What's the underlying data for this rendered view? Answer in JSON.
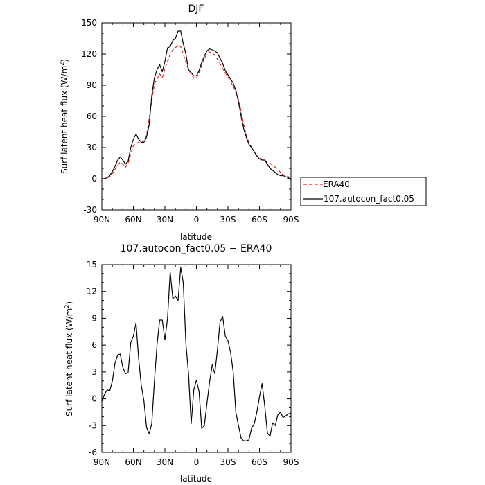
{
  "chart_data": [
    {
      "type": "line",
      "title": "DJF",
      "xlabel": "latitude",
      "ylabel_main": "Surf latent heat flux (W/m",
      "ylabel_sup": "2",
      "ylabel_close": ")",
      "xlim": [
        -90,
        90
      ],
      "ylim": [
        -30,
        150
      ],
      "x_ticks": [
        {
          "value": -90,
          "label": "90N"
        },
        {
          "value": -60,
          "label": "60N"
        },
        {
          "value": -30,
          "label": "30N"
        },
        {
          "value": 0,
          "label": "0"
        },
        {
          "value": 30,
          "label": "30S"
        },
        {
          "value": 60,
          "label": "60S"
        },
        {
          "value": 90,
          "label": "90S"
        }
      ],
      "y_ticks": [
        -30,
        0,
        30,
        60,
        90,
        120,
        150
      ],
      "legend_position": "right",
      "series": [
        {
          "name": "ERA40",
          "color": "#e8211d",
          "dash": true,
          "x": [
            -90,
            -87.5,
            -85,
            -82.5,
            -80,
            -77.5,
            -75,
            -72.5,
            -70,
            -67.5,
            -65,
            -62.5,
            -60,
            -57.5,
            -55,
            -52.5,
            -50,
            -47.5,
            -45,
            -42.5,
            -40,
            -37.5,
            -35,
            -32.5,
            -30,
            -27.5,
            -25,
            -22.5,
            -20,
            -17.5,
            -15,
            -12.5,
            -10,
            -7.5,
            -5,
            -2.5,
            0,
            2.5,
            5,
            7.5,
            10,
            12.5,
            15,
            17.5,
            20,
            22.5,
            25,
            27.5,
            30,
            32.5,
            35,
            37.5,
            40,
            42.5,
            45,
            47.5,
            50,
            52.5,
            55,
            57.5,
            60,
            62.5,
            65,
            67.5,
            70,
            72.5,
            75,
            77.5,
            80,
            82.5,
            85,
            87.5,
            90
          ],
          "values": [
            0,
            0,
            1,
            2,
            5,
            9,
            13,
            16,
            14,
            11,
            15,
            24,
            32,
            34,
            35,
            34,
            37,
            42,
            58,
            75,
            91,
            96,
            101,
            97,
            106,
            113,
            120,
            124,
            126,
            129,
            127,
            120,
            112,
            105,
            101,
            97,
            97,
            102,
            109,
            116,
            120,
            122,
            121,
            119,
            115,
            111,
            106,
            102,
            98,
            93,
            89,
            83,
            76,
            65,
            52,
            42,
            35,
            30,
            26,
            22,
            20,
            19,
            18,
            16,
            15,
            13,
            11,
            9,
            6,
            4,
            3,
            2,
            1
          ]
        },
        {
          "name": "107.autocon_fact0.05",
          "color": "#000000",
          "dash": false,
          "x": [
            -90,
            -87.5,
            -85,
            -82.5,
            -80,
            -77.5,
            -75,
            -72.5,
            -70,
            -67.5,
            -65,
            -62.5,
            -60,
            -57.5,
            -55,
            -52.5,
            -50,
            -47.5,
            -45,
            -42.5,
            -40,
            -37.5,
            -35,
            -32.5,
            -30,
            -27.5,
            -25,
            -22.5,
            -20,
            -17.5,
            -15,
            -12.5,
            -10,
            -7.5,
            -5,
            -2.5,
            0,
            2.5,
            5,
            7.5,
            10,
            12.5,
            15,
            17.5,
            20,
            22.5,
            25,
            27.5,
            30,
            32.5,
            35,
            37.5,
            40,
            42.5,
            45,
            47.5,
            50,
            52.5,
            55,
            57.5,
            60,
            62.5,
            65,
            67.5,
            70,
            72.5,
            75,
            77.5,
            80,
            82.5,
            85,
            87.5,
            90
          ],
          "values": [
            0,
            0,
            1,
            3,
            7,
            12,
            18,
            21,
            18,
            14,
            17,
            30,
            38,
            43,
            38,
            35,
            35,
            40,
            52,
            80,
            97,
            105,
            110,
            103,
            113,
            126,
            127,
            133,
            135,
            142,
            142,
            130,
            120,
            105,
            102,
            99,
            99,
            104,
            112,
            118,
            123,
            125,
            124,
            123,
            121,
            116,
            111,
            104,
            100,
            96,
            92,
            85,
            74,
            60,
            48,
            40,
            33,
            30,
            26,
            22,
            19,
            18,
            18,
            14,
            10,
            8,
            6,
            4,
            3,
            3,
            2,
            1,
            -1
          ]
        }
      ]
    },
    {
      "type": "line",
      "title": "107.autocon_fact0.05 − ERA40",
      "xlabel": "latitude",
      "ylabel_main": "Surf latent heat flux (W/m",
      "ylabel_sup": "2",
      "ylabel_close": ")",
      "xlim": [
        -90,
        90
      ],
      "ylim": [
        -6,
        15
      ],
      "x_ticks": [
        {
          "value": -90,
          "label": "90N"
        },
        {
          "value": -60,
          "label": "60N"
        },
        {
          "value": -30,
          "label": "30N"
        },
        {
          "value": 0,
          "label": "0"
        },
        {
          "value": 30,
          "label": "30S"
        },
        {
          "value": 60,
          "label": "60S"
        },
        {
          "value": 90,
          "label": "90S"
        }
      ],
      "y_ticks": [
        -6,
        -3,
        0,
        3,
        6,
        9,
        12,
        15
      ],
      "series": [
        {
          "color": "#000000",
          "dash": false,
          "x": [
            -90,
            -87.5,
            -85,
            -82.5,
            -80,
            -77.5,
            -75,
            -72.5,
            -70,
            -67.5,
            -65,
            -62.5,
            -60,
            -57.5,
            -55,
            -52.5,
            -50,
            -47.5,
            -45,
            -42.5,
            -40,
            -37.5,
            -35,
            -32.5,
            -30,
            -27.5,
            -25,
            -22.5,
            -20,
            -17.5,
            -15,
            -12.5,
            -10,
            -7.5,
            -5,
            -2.5,
            0,
            2.5,
            5,
            7.5,
            10,
            12.5,
            15,
            17.5,
            20,
            22.5,
            25,
            27.5,
            30,
            32.5,
            35,
            37.5,
            40,
            42.5,
            45,
            47.5,
            50,
            52.5,
            55,
            57.5,
            60,
            62.5,
            65,
            67.5,
            70,
            72.5,
            75,
            77.5,
            80,
            82.5,
            85,
            87.5,
            90
          ],
          "values": [
            -0.3,
            0.5,
            1.0,
            0.9,
            2.0,
            4.0,
            4.9,
            5.0,
            3.5,
            2.8,
            2.9,
            6.3,
            7.0,
            8.5,
            4.5,
            1.5,
            -0.2,
            -3.2,
            -3.9,
            -2.8,
            1.9,
            6.0,
            8.8,
            8.8,
            6.6,
            9.0,
            14.2,
            11.2,
            11.5,
            11.0,
            14.7,
            13.0,
            6.2,
            2.8,
            -2.8,
            1.0,
            2.1,
            0.8,
            -3.3,
            -3.0,
            -0.5,
            1.9,
            3.8,
            2.8,
            5.5,
            8.6,
            9.2,
            7.0,
            6.5,
            5.2,
            3.0,
            -1.5,
            -3.0,
            -4.4,
            -4.7,
            -4.7,
            -4.6,
            -3.3,
            -2.8,
            -1.5,
            0.2,
            1.7,
            -0.8,
            -3.8,
            -4.2,
            -2.7,
            -3.0,
            -1.8,
            -1.5,
            -2.1,
            -1.9,
            -1.7,
            -1.6
          ]
        }
      ]
    }
  ]
}
